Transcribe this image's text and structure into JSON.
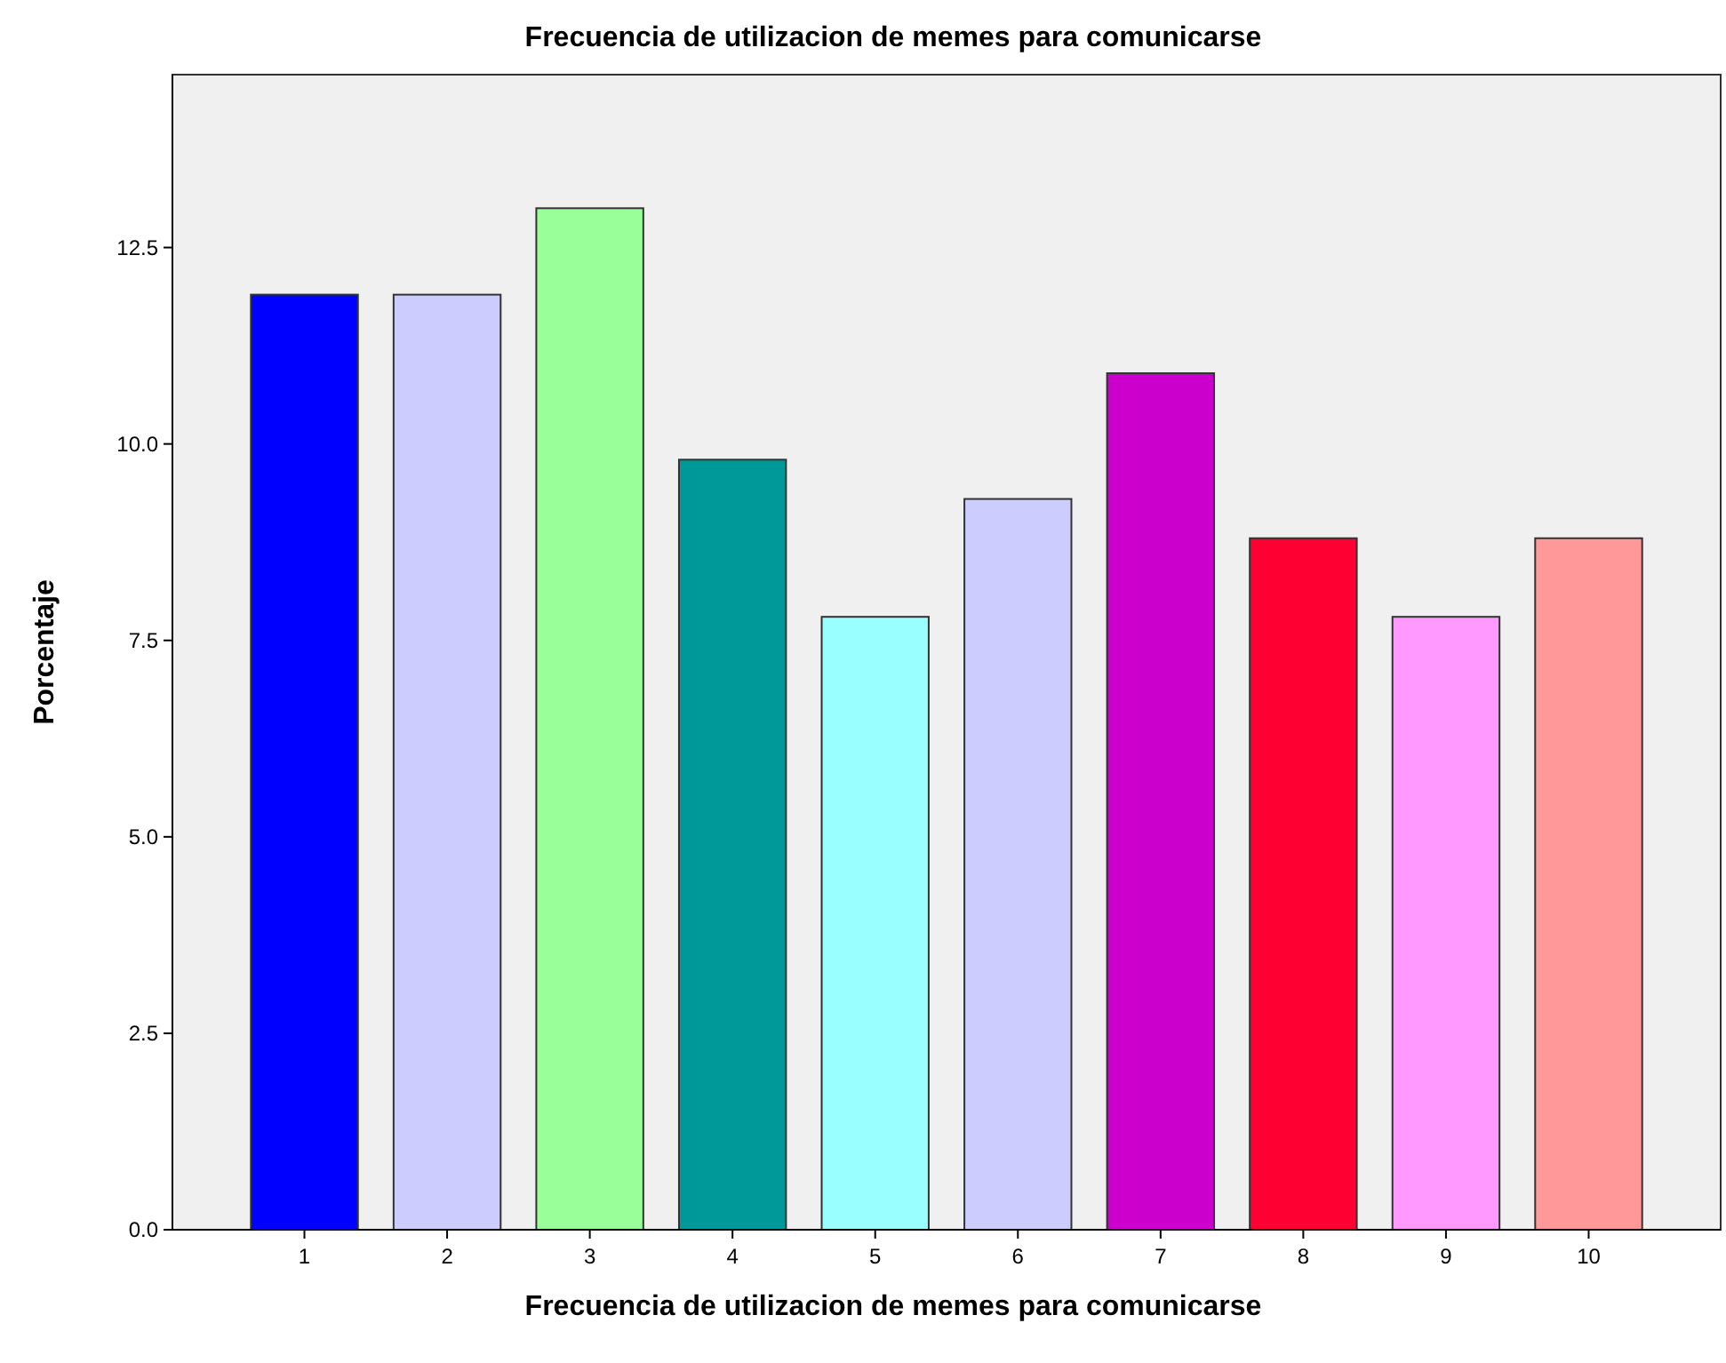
{
  "chart_data": {
    "type": "bar",
    "title": "Frecuencia de utilizacion de memes para comunicarse",
    "xlabel": "Frecuencia de utilizacion de memes para comunicarse",
    "ylabel": "Porcentaje",
    "categories": [
      "1",
      "2",
      "3",
      "4",
      "5",
      "6",
      "7",
      "8",
      "9",
      "10"
    ],
    "values": [
      11.9,
      11.9,
      13.0,
      9.8,
      7.8,
      9.3,
      10.9,
      8.8,
      7.8,
      8.8
    ],
    "colors": [
      "#0000ff",
      "#ccccff",
      "#99ff99",
      "#009999",
      "#99ffff",
      "#ccccff",
      "#cc00cc",
      "#ff0033",
      "#ff99ff",
      "#ff9999"
    ],
    "ylim": [
      0,
      14.7
    ],
    "yticks": [
      {
        "value": 0,
        "label": "0.0"
      },
      {
        "value": 2.5,
        "label": "2.5"
      },
      {
        "value": 5,
        "label": "5.0"
      },
      {
        "value": 7.5,
        "label": "7.5"
      },
      {
        "value": 10,
        "label": "10.0"
      },
      12.5
    ],
    "grid": false
  }
}
